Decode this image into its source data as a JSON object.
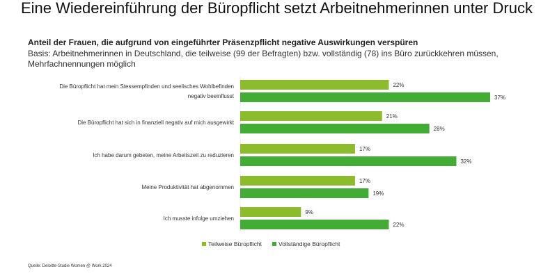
{
  "chart_data": {
    "type": "bar",
    "orientation": "horizontal",
    "title": "Eine Wiedereinführung der Büropflicht setzt Arbeitnehmerinnen unter Druck",
    "subtitle": "Anteil der Frauen, die aufgrund von eingeführter Präsenzpflicht  negative Auswirkungen verspüren",
    "basis": "Basis: Arbeitnehmerinnen  in Deutschland, die teilweise  (99 der Befragten) bzw. vollständig (78) ins Büro zurückkehren  müssen, Mehrfachnennungen  möglich",
    "categories": [
      "Die Büropflicht hat mein Stessempfinden und seelisches Wohlbefinden negativ beeinflusst",
      "Die Büropflicht hat sich in finanziell negativ auf mich ausgewirkt",
      "Ich habe darum gebeten, meine Arbeitszeit zu reduzieren",
      "Meine Produktivität hat abgenommen",
      "Ich musste infolge umziehen"
    ],
    "series": [
      {
        "name": "Teilweise Büropflicht",
        "color": "#8cbc2c",
        "values": [
          22,
          21,
          17,
          17,
          9
        ]
      },
      {
        "name": "Vollständige Büropflicht",
        "color": "#43ac34",
        "values": [
          37,
          28,
          32,
          19,
          22
        ]
      }
    ],
    "value_format": "%",
    "xlim": [
      0,
      37
    ],
    "grid": false,
    "legend": "bottom",
    "source": "Quelle: Deloitte-Studie Women @ Work 2024"
  }
}
